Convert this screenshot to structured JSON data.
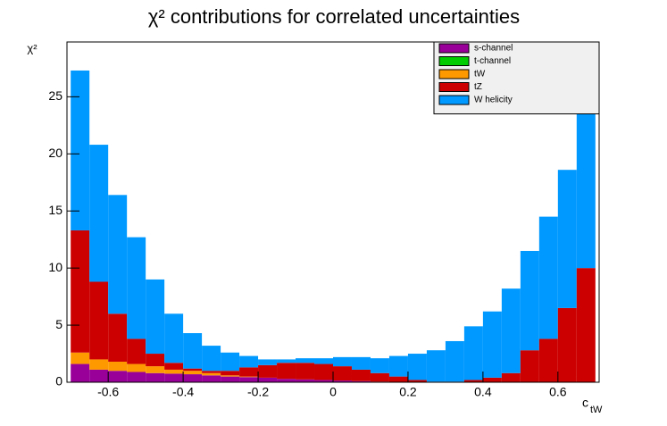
{
  "chart_data": {
    "type": "stacked_histogram",
    "title": "χ² contributions for correlated uncertainties",
    "y_label": "χ²",
    "x_label": "c",
    "x_label_sub": "tW",
    "bins": [
      -0.7,
      -0.65,
      -0.6,
      -0.55,
      -0.5,
      -0.45,
      -0.4,
      -0.35,
      -0.3,
      -0.25,
      -0.2,
      -0.15,
      -0.1,
      -0.05,
      0,
      0.05,
      0.1,
      0.15,
      0.2,
      0.25,
      0.3,
      0.35,
      0.4,
      0.45,
      0.5,
      0.55,
      0.6,
      0.65,
      0.7
    ],
    "series": [
      {
        "name": "s-channel",
        "color": "#990099",
        "values": [
          1.6,
          1.1,
          1.0,
          0.9,
          0.8,
          0.75,
          0.7,
          0.6,
          0.5,
          0.45,
          0.4,
          0.3,
          0.25,
          0.2,
          0.15,
          0.1,
          0.05,
          0,
          0,
          0,
          0,
          0,
          0,
          0,
          0,
          0,
          0,
          0
        ]
      },
      {
        "name": "t-channel",
        "color": "#00cc00",
        "values": [
          0,
          0,
          0,
          0,
          0,
          0,
          0,
          0,
          0,
          0,
          0,
          0,
          0,
          0,
          0,
          0,
          0,
          0,
          0,
          0,
          0,
          0,
          0,
          0,
          0,
          0,
          0,
          0
        ]
      },
      {
        "name": "tW",
        "color": "#ff9900",
        "values": [
          1.0,
          0.9,
          0.8,
          0.7,
          0.6,
          0.35,
          0.3,
          0.2,
          0.1,
          0.05,
          0,
          0,
          0,
          0,
          0,
          0,
          0,
          0,
          0,
          0,
          0,
          0,
          0,
          0,
          0,
          0,
          0,
          0
        ]
      },
      {
        "name": "tZ",
        "color": "#cc0000",
        "values": [
          10.7,
          6.8,
          4.2,
          2.2,
          1.1,
          0.6,
          0.2,
          0.2,
          0.4,
          0.8,
          1.1,
          1.4,
          1.45,
          1.4,
          1.25,
          1.0,
          0.75,
          0.5,
          0.2,
          0.05,
          0.05,
          0.2,
          0.4,
          0.8,
          2.8,
          3.8,
          6.5,
          10.0
        ]
      },
      {
        "name": "W helicity",
        "color": "#0099ff",
        "values": [
          14.0,
          12.0,
          10.4,
          8.9,
          6.5,
          4.3,
          3.1,
          2.2,
          1.6,
          1.0,
          0.5,
          0.3,
          0.4,
          0.5,
          0.8,
          1.1,
          1.3,
          1.8,
          2.3,
          2.75,
          3.55,
          4.7,
          5.8,
          7.4,
          8.7,
          10.7,
          12.1,
          14.1
        ]
      }
    ],
    "xlim": [
      -0.71,
      0.71
    ],
    "xticks": [
      -0.6,
      -0.4,
      -0.2,
      0,
      0.2,
      0.4,
      0.6
    ],
    "ylim": [
      0,
      29.8
    ],
    "yticks": [
      0,
      5,
      10,
      15,
      20,
      25
    ],
    "legend": "upper right"
  }
}
